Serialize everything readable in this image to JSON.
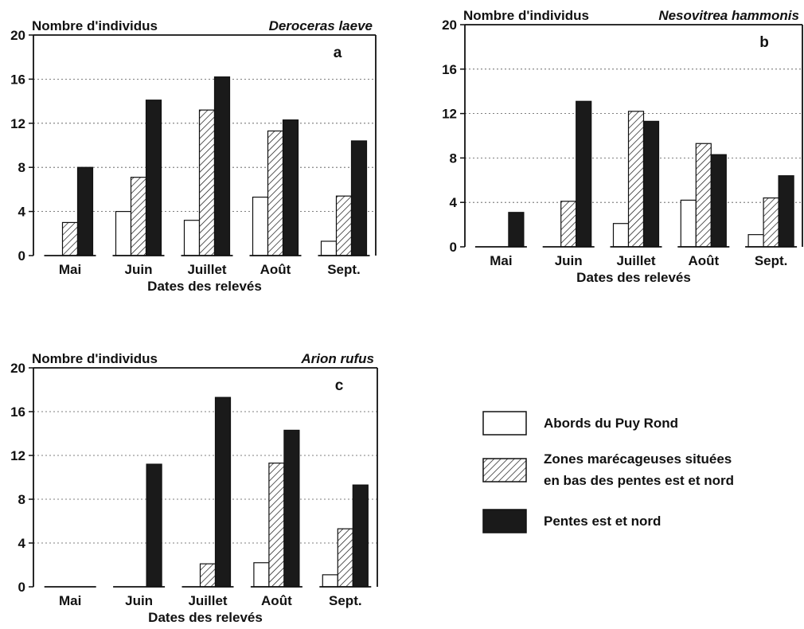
{
  "legend": {
    "items": [
      {
        "label_lines": [
          "Abords du Puy Rond"
        ],
        "fill": "white"
      },
      {
        "label_lines": [
          "Zones marécageuses situées",
          "en bas des pentes est et nord"
        ],
        "fill": "hatch"
      },
      {
        "label_lines": [
          "Pentes est et nord"
        ],
        "fill": "black"
      }
    ]
  },
  "chart_data": [
    {
      "type": "bar",
      "panel": "a",
      "species": "Deroceras laeve",
      "ylabel": "Nombre d'individus",
      "xlabel": "Dates des relevés",
      "categories": [
        "Mai",
        "Juin",
        "Juillet",
        "Août",
        "Sept."
      ],
      "yticks": [
        "0",
        "4",
        "8",
        "12",
        "16",
        "20"
      ],
      "ylim": [
        0,
        20
      ],
      "grid": true,
      "series": [
        {
          "name": "Abords du Puy Rond",
          "values": [
            0,
            4,
            3.2,
            5.3,
            1.3
          ]
        },
        {
          "name": "Zones marécageuses situées en bas des pentes est et nord",
          "values": [
            3,
            7.1,
            13.2,
            11.3,
            5.4
          ]
        },
        {
          "name": "Pentes est et nord",
          "values": [
            8,
            14.1,
            16.2,
            12.3,
            10.4
          ]
        }
      ]
    },
    {
      "type": "bar",
      "panel": "b",
      "species": "Nesovitrea hammonis",
      "ylabel": "Nombre d'individus",
      "xlabel": "Dates des relevés",
      "categories": [
        "Mai",
        "Juin",
        "Juillet",
        "Août",
        "Sept."
      ],
      "yticks": [
        "0",
        "4",
        "8",
        "12",
        "16",
        "20"
      ],
      "ylim": [
        0,
        20
      ],
      "grid": true,
      "series": [
        {
          "name": "Abords du Puy Rond",
          "values": [
            0,
            0,
            2.1,
            4.2,
            1.1
          ]
        },
        {
          "name": "Zones marécageuses situées en bas des pentes est et nord",
          "values": [
            0,
            4.1,
            12.2,
            9.3,
            4.4
          ]
        },
        {
          "name": "Pentes est et nord",
          "values": [
            3.1,
            13.1,
            11.3,
            8.3,
            6.4
          ]
        }
      ]
    },
    {
      "type": "bar",
      "panel": "c",
      "species": "Arion rufus",
      "ylabel": "Nombre d'individus",
      "xlabel": "Dates des relevés",
      "categories": [
        "Mai",
        "Juin",
        "Juillet",
        "Août",
        "Sept."
      ],
      "yticks": [
        "0",
        "4",
        "8",
        "12",
        "16",
        "20"
      ],
      "ylim": [
        0,
        20
      ],
      "grid": true,
      "series": [
        {
          "name": "Abords du Puy Rond",
          "values": [
            0,
            0,
            0,
            2.2,
            1.1
          ]
        },
        {
          "name": "Zones marécageuses situées en bas des pentes est et nord",
          "values": [
            0,
            0,
            2.1,
            11.3,
            5.3
          ]
        },
        {
          "name": "Pentes est et nord",
          "values": [
            0,
            11.2,
            17.3,
            14.3,
            9.3
          ]
        }
      ]
    }
  ]
}
